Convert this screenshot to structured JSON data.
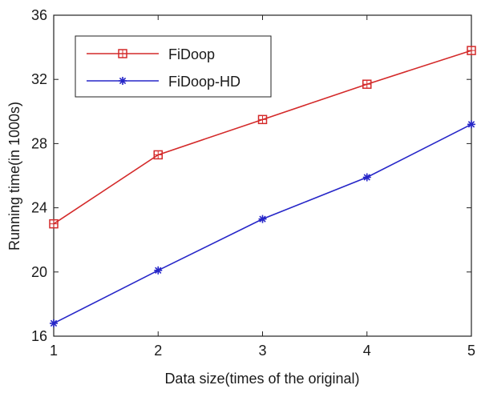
{
  "chart_data": {
    "type": "line",
    "xlabel": "Data size(times of the original)",
    "ylabel": "Running time(in 1000s)",
    "x": [
      1,
      2,
      3,
      4,
      5
    ],
    "xlim": [
      1,
      5
    ],
    "ylim": [
      16,
      36
    ],
    "xticks": [
      "1",
      "2",
      "3",
      "4",
      "5"
    ],
    "yticks": [
      "16",
      "20",
      "24",
      "28",
      "32",
      "36"
    ],
    "grid": false,
    "legend_position": "top-left",
    "series": [
      {
        "name": "FiDoop",
        "values": [
          23.0,
          27.3,
          29.5,
          31.7,
          33.8
        ],
        "color": "#d42a2a",
        "marker": "square"
      },
      {
        "name": "FiDoop-HD",
        "values": [
          16.8,
          20.1,
          23.3,
          25.9,
          29.2
        ],
        "color": "#2626c8",
        "marker": "asterisk"
      }
    ]
  }
}
